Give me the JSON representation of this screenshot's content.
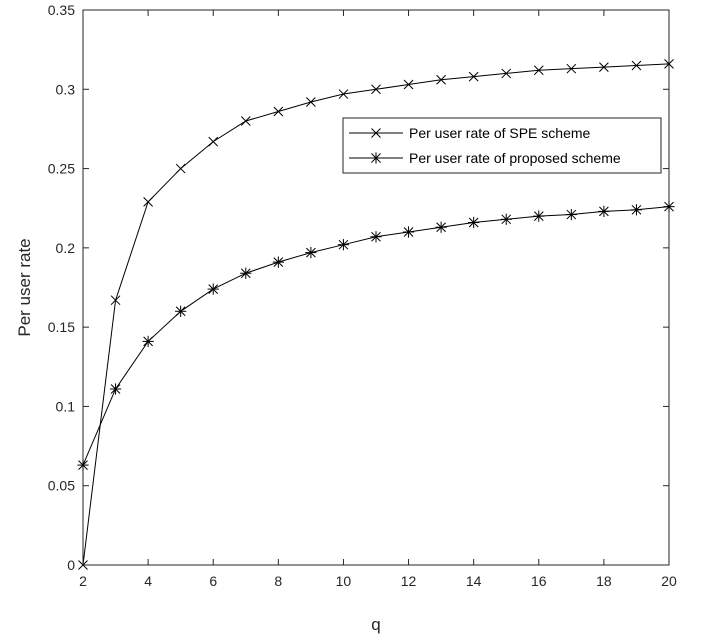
{
  "chart_data": {
    "type": "line",
    "title": "",
    "xlabel": "q",
    "ylabel": "Per user rate",
    "xlim": [
      2,
      20
    ],
    "ylim": [
      0,
      0.35
    ],
    "xticks": [
      2,
      4,
      6,
      8,
      10,
      12,
      14,
      16,
      18,
      20
    ],
    "xtick_labels": [
      "2",
      "4",
      "6",
      "8",
      "10",
      "12",
      "14",
      "16",
      "18",
      "20"
    ],
    "yticks": [
      0,
      0.05,
      0.1,
      0.15,
      0.2,
      0.25,
      0.3,
      0.35
    ],
    "ytick_labels": [
      "0",
      "0.05",
      "0.1",
      "0.15",
      "0.2",
      "0.25",
      "0.3",
      "0.35"
    ],
    "grid": false,
    "legend_position": "right, upper middle",
    "x": [
      2,
      3,
      4,
      5,
      6,
      7,
      8,
      9,
      10,
      11,
      12,
      13,
      14,
      15,
      16,
      17,
      18,
      19,
      20
    ],
    "series": [
      {
        "name": "Per user rate of SPE scheme",
        "marker": "x",
        "color": "#000000",
        "values": [
          0.0,
          0.167,
          0.229,
          0.25,
          0.267,
          0.28,
          0.286,
          0.292,
          0.297,
          0.3,
          0.303,
          0.306,
          0.308,
          0.31,
          0.312,
          0.313,
          0.314,
          0.315,
          0.316
        ]
      },
      {
        "name": "Per user rate of proposed scheme",
        "marker": "asterisk",
        "color": "#000000",
        "values": [
          0.063,
          0.111,
          0.141,
          0.16,
          0.174,
          0.184,
          0.191,
          0.197,
          0.202,
          0.207,
          0.21,
          0.213,
          0.216,
          0.218,
          0.22,
          0.221,
          0.223,
          0.224,
          0.226
        ]
      }
    ]
  }
}
